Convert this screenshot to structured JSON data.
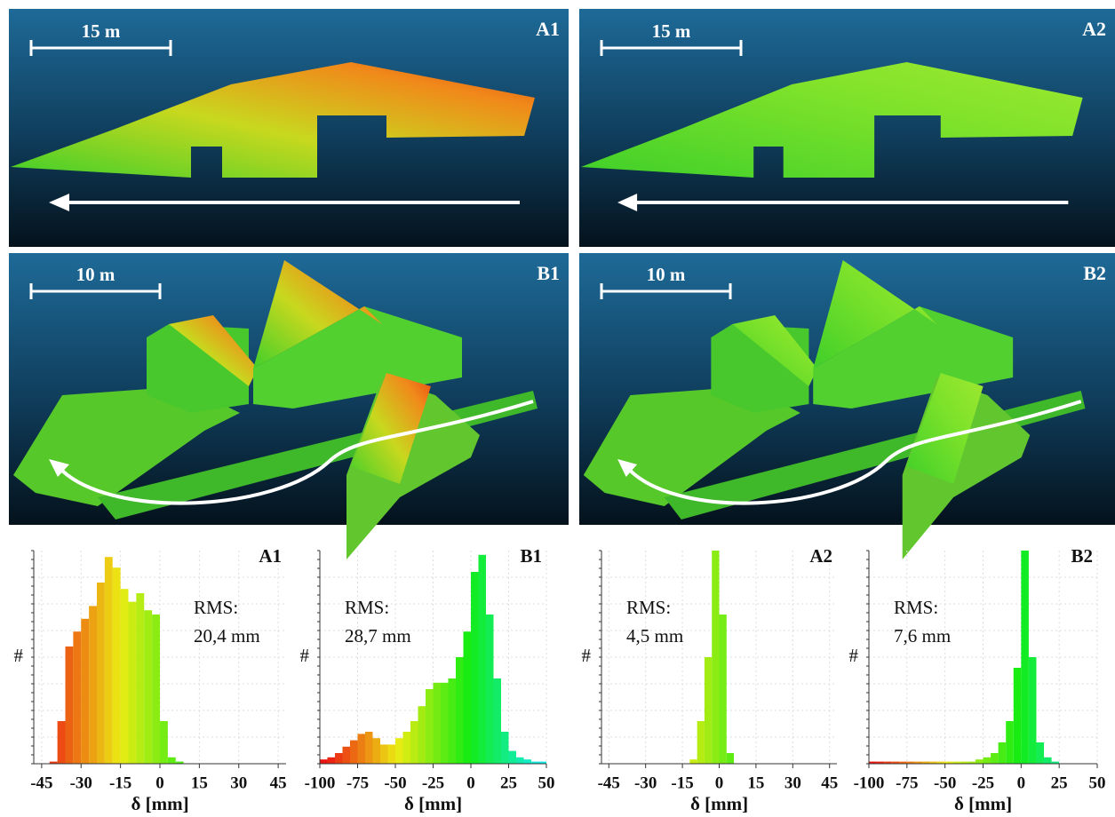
{
  "panels": [
    {
      "label": "A1",
      "scale": "15 m"
    },
    {
      "label": "A2",
      "scale": "15 m"
    },
    {
      "label": "B1",
      "scale": "10 m"
    },
    {
      "label": "B2",
      "scale": "10 m"
    }
  ],
  "chart_data": [
    {
      "type": "histogram",
      "label": "A1",
      "rms_title": "RMS:",
      "rms": "20,4 mm",
      "xlabel": "δ [mm]",
      "ylabel": "#",
      "bins": [
        -45,
        -42,
        -39,
        -36,
        -33,
        -30,
        -27,
        -24,
        -21,
        -18,
        -15,
        -12,
        -9,
        -6,
        -3,
        0,
        3,
        6,
        9,
        12,
        15,
        18,
        21,
        24,
        27,
        30,
        33,
        36,
        39,
        42,
        45,
        48,
        51
      ],
      "values": [
        0,
        1,
        20,
        55,
        62,
        68,
        74,
        85,
        97,
        92,
        82,
        76,
        80,
        72,
        70,
        20,
        3,
        1,
        0,
        0,
        0,
        0,
        0,
        0,
        0,
        0,
        0,
        0,
        0,
        0,
        0,
        0
      ],
      "xlim": [
        -48,
        48
      ],
      "ylim": [
        0,
        100
      ],
      "xticks": [
        -45,
        -30,
        -15,
        0,
        15,
        30,
        45
      ],
      "grid": true
    },
    {
      "type": "histogram",
      "label": "B1",
      "rms_title": "RMS:",
      "rms": "28,7 mm",
      "xlabel": "δ [mm]",
      "ylabel": "#",
      "bins": [
        -100,
        -95,
        -90,
        -85,
        -80,
        -75,
        -70,
        -65,
        -60,
        -55,
        -50,
        -45,
        -40,
        -35,
        -30,
        -25,
        -20,
        -15,
        -10,
        -5,
        0,
        5,
        10,
        15,
        20,
        25,
        30,
        35,
        40,
        45,
        50
      ],
      "values": [
        2,
        3,
        5,
        8,
        11,
        14,
        15,
        12,
        9,
        9,
        12,
        15,
        20,
        27,
        35,
        38,
        38,
        40,
        50,
        62,
        90,
        98,
        70,
        40,
        15,
        6,
        3,
        2,
        1,
        1
      ],
      "xlim": [
        -100,
        50
      ],
      "ylim": [
        0,
        100
      ],
      "xticks": [
        -100,
        -75,
        -50,
        -25,
        0,
        25,
        50
      ],
      "grid": true
    },
    {
      "type": "histogram",
      "label": "A2",
      "rms_title": "RMS:",
      "rms": "4,5 mm",
      "xlabel": "δ [mm]",
      "ylabel": "#",
      "bins": [
        -45,
        -42,
        -39,
        -36,
        -33,
        -30,
        -27,
        -24,
        -21,
        -18,
        -15,
        -12,
        -9,
        -6,
        -3,
        0,
        3,
        6,
        9,
        12,
        15,
        18,
        21,
        24,
        27,
        30,
        33,
        36,
        39,
        42,
        45,
        48,
        51
      ],
      "values": [
        0,
        0,
        0,
        0,
        0,
        0,
        0,
        0,
        0,
        0,
        0,
        2,
        20,
        50,
        100,
        70,
        5,
        0,
        0,
        0,
        0,
        0,
        0,
        0,
        0,
        0,
        0,
        0,
        0,
        0,
        0,
        0
      ],
      "xlim": [
        -48,
        48
      ],
      "ylim": [
        0,
        100
      ],
      "xticks": [
        -45,
        -30,
        -15,
        0,
        15,
        30,
        45
      ],
      "grid": true
    },
    {
      "type": "histogram",
      "label": "B2",
      "rms_title": "RMS:",
      "rms": "7,6 mm",
      "xlabel": "δ [mm]",
      "ylabel": "#",
      "bins": [
        -100,
        -95,
        -90,
        -85,
        -80,
        -75,
        -70,
        -65,
        -60,
        -55,
        -50,
        -45,
        -40,
        -35,
        -30,
        -25,
        -20,
        -15,
        -10,
        -5,
        0,
        5,
        10,
        15,
        20,
        25,
        30,
        35,
        40,
        45,
        50
      ],
      "values": [
        1,
        1,
        1,
        1,
        1,
        1,
        1,
        1,
        1,
        1,
        1,
        1,
        1,
        1,
        2,
        3,
        5,
        10,
        20,
        45,
        100,
        50,
        10,
        3,
        1,
        0,
        0,
        0,
        0,
        0
      ],
      "xlim": [
        -100,
        50
      ],
      "ylim": [
        0,
        100
      ],
      "xticks": [
        -100,
        -75,
        -50,
        -25,
        0,
        25,
        50
      ],
      "grid": true
    }
  ]
}
